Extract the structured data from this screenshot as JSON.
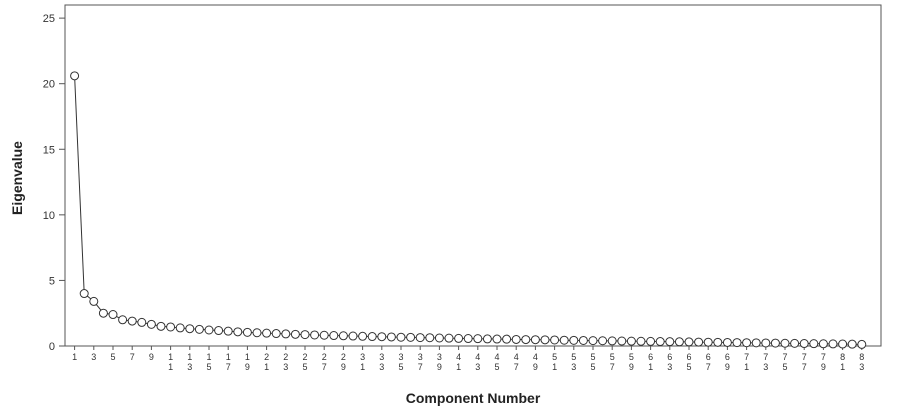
{
  "chart_data": {
    "type": "line",
    "xlabel": "Component Number",
    "ylabel": "Eigenvalue",
    "ylim": [
      0,
      26
    ],
    "yticks": [
      "0",
      "5",
      "10",
      "15",
      "20",
      "25"
    ],
    "xtick_labels": [
      "1",
      "3",
      "5",
      "7",
      "9",
      "11",
      "13",
      "15",
      "17",
      "19",
      "21",
      "23",
      "25",
      "27",
      "29",
      "31",
      "33",
      "35",
      "37",
      "39",
      "41",
      "43",
      "45",
      "47",
      "49",
      "51",
      "53",
      "55",
      "57",
      "59",
      "61",
      "63",
      "65",
      "67",
      "69",
      "71",
      "73",
      "75",
      "77",
      "79",
      "81",
      "83"
    ],
    "grid": false,
    "legend": "none",
    "colors": {
      "line": "#333333",
      "marker": "#333333",
      "frame": "#555555"
    },
    "x": [
      1,
      2,
      3,
      4,
      5,
      6,
      7,
      8,
      9,
      10,
      11,
      12,
      13,
      14,
      15,
      16,
      17,
      18,
      19,
      20,
      21,
      22,
      23,
      24,
      25,
      26,
      27,
      28,
      29,
      30,
      31,
      32,
      33,
      34,
      35,
      36,
      37,
      38,
      39,
      40,
      41,
      42,
      43,
      44,
      45,
      46,
      47,
      48,
      49,
      50,
      51,
      52,
      53,
      54,
      55,
      56,
      57,
      58,
      59,
      60,
      61,
      62,
      63,
      64,
      65,
      66,
      67,
      68,
      69,
      70,
      71,
      72,
      73,
      74,
      75,
      76,
      77,
      78,
      79,
      80,
      81,
      82,
      83
    ],
    "values": [
      20.6,
      4.0,
      3.4,
      2.5,
      2.4,
      2.0,
      1.9,
      1.8,
      1.65,
      1.5,
      1.45,
      1.38,
      1.32,
      1.27,
      1.22,
      1.18,
      1.13,
      1.08,
      1.04,
      1.01,
      0.98,
      0.95,
      0.92,
      0.89,
      0.87,
      0.84,
      0.82,
      0.8,
      0.78,
      0.76,
      0.74,
      0.72,
      0.71,
      0.69,
      0.67,
      0.66,
      0.64,
      0.63,
      0.61,
      0.6,
      0.58,
      0.57,
      0.56,
      0.54,
      0.53,
      0.52,
      0.5,
      0.49,
      0.48,
      0.47,
      0.46,
      0.44,
      0.43,
      0.42,
      0.41,
      0.4,
      0.39,
      0.38,
      0.37,
      0.36,
      0.35,
      0.34,
      0.33,
      0.32,
      0.31,
      0.3,
      0.29,
      0.28,
      0.27,
      0.26,
      0.25,
      0.24,
      0.23,
      0.22,
      0.21,
      0.2,
      0.19,
      0.18,
      0.17,
      0.16,
      0.15,
      0.14,
      0.12
    ]
  }
}
